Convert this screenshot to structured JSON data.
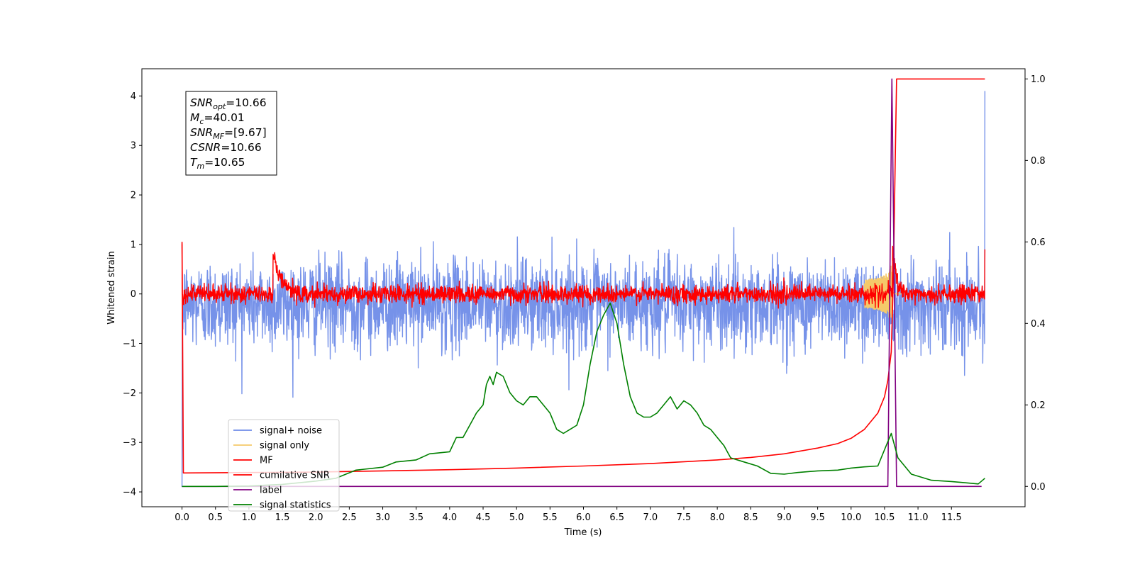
{
  "chart_data": {
    "type": "line",
    "xlabel": "Time (s)",
    "ylabel_left": "Whitened strain",
    "xlim": [
      -0.6,
      12.6
    ],
    "ylim_left": [
      -4.3,
      4.55
    ],
    "ylim_right": [
      -0.05,
      1.025
    ],
    "x_ticks": [
      0.0,
      0.5,
      1.0,
      1.5,
      2.0,
      2.5,
      3.0,
      3.5,
      4.0,
      4.5,
      5.0,
      5.5,
      6.0,
      6.5,
      7.0,
      7.5,
      8.0,
      8.5,
      9.0,
      9.5,
      10.0,
      10.5,
      11.0,
      11.5
    ],
    "x_tick_labels": [
      "0.0",
      "0.5",
      "1.0",
      "1.5",
      "2.0",
      "2.5",
      "3.0",
      "3.5",
      "4.0",
      "4.5",
      "5.0",
      "5.5",
      "6.0",
      "6.5",
      "7.0",
      "7.5",
      "8.0",
      "8.5",
      "9.0",
      "9.5",
      "10.0",
      "10.5",
      "11.0",
      "11.5"
    ],
    "y_ticks_left": [
      -4,
      -3,
      -2,
      -1,
      0,
      1,
      2,
      3,
      4
    ],
    "y_tick_labels_left": [
      "−4",
      "−3",
      "−2",
      "−1",
      "0",
      "1",
      "2",
      "3",
      "4"
    ],
    "y_ticks_right": [
      0.0,
      0.2,
      0.4,
      0.6,
      0.8,
      1.0
    ],
    "y_tick_labels_right": [
      "0.0",
      "0.2",
      "0.4",
      "0.6",
      "0.8",
      "1.0"
    ],
    "grid": false,
    "legend_position": "lower-left",
    "annotation_box": {
      "position": "top-left",
      "lines": [
        {
          "symbol": "SNR",
          "sub": "opt",
          "value": "=10.66"
        },
        {
          "symbol": "M",
          "sub": "c",
          "value": "=40.01"
        },
        {
          "symbol": "SNR",
          "sub": "MF",
          "value": "=[9.67]"
        },
        {
          "symbol": "CSNR",
          "sub": "",
          "value": "=10.66"
        },
        {
          "symbol": "T",
          "sub": "m",
          "value": "=10.65"
        }
      ]
    },
    "series": [
      {
        "name": "signal+ noise",
        "axis": "left",
        "color": "#6f8ce8",
        "style": "noise",
        "x_range": [
          0.0,
          12.0
        ],
        "mean": -0.2,
        "std": 0.45,
        "start_value": -3.9,
        "end_value": 4.1
      },
      {
        "name": "signal only",
        "axis": "left",
        "color": "#f5c96a",
        "style": "chirp",
        "x_range": [
          10.2,
          10.75
        ],
        "peak_time": 10.62,
        "peak_amplitude": 0.6
      },
      {
        "name": "MF",
        "axis": "left",
        "color": "#ff0000",
        "style": "noise",
        "x_range": [
          0.0,
          12.0
        ],
        "mean": 0.0,
        "std": 0.09,
        "start_value": 1.0,
        "end_value": 0.9,
        "bursts": [
          {
            "x": 1.36,
            "value": 0.95,
            "decay": 0.12
          },
          {
            "x": 10.62,
            "value": 1.2,
            "decay": 0.05
          }
        ]
      },
      {
        "name": "cumilative SNR",
        "axis": "right",
        "color": "#ff0000",
        "style": "line",
        "points": [
          [
            0.0,
            0.6
          ],
          [
            0.02,
            0.033
          ],
          [
            1.0,
            0.034
          ],
          [
            2.0,
            0.035
          ],
          [
            3.0,
            0.038
          ],
          [
            4.0,
            0.041
          ],
          [
            5.0,
            0.045
          ],
          [
            6.0,
            0.05
          ],
          [
            7.0,
            0.056
          ],
          [
            8.0,
            0.065
          ],
          [
            8.5,
            0.071
          ],
          [
            9.0,
            0.08
          ],
          [
            9.5,
            0.094
          ],
          [
            9.8,
            0.105
          ],
          [
            10.0,
            0.118
          ],
          [
            10.2,
            0.14
          ],
          [
            10.4,
            0.18
          ],
          [
            10.5,
            0.22
          ],
          [
            10.55,
            0.26
          ],
          [
            10.6,
            0.33
          ],
          [
            10.63,
            0.5
          ],
          [
            10.66,
            0.8
          ],
          [
            10.68,
            1.0
          ],
          [
            12.0,
            1.0
          ]
        ]
      },
      {
        "name": "label",
        "axis": "right",
        "color": "#800080",
        "style": "line",
        "points": [
          [
            0.0,
            0.0
          ],
          [
            10.55,
            0.0
          ],
          [
            10.61,
            1.0
          ],
          [
            10.68,
            0.0
          ],
          [
            11.95,
            0.0
          ]
        ]
      },
      {
        "name": "signal statistics",
        "axis": "right",
        "color": "#008000",
        "style": "line",
        "points": [
          [
            0.0,
            0.0
          ],
          [
            0.5,
            0.0
          ],
          [
            1.0,
            0.001
          ],
          [
            1.5,
            0.005
          ],
          [
            2.0,
            0.013
          ],
          [
            2.3,
            0.02
          ],
          [
            2.6,
            0.04
          ],
          [
            3.0,
            0.047
          ],
          [
            3.2,
            0.06
          ],
          [
            3.5,
            0.065
          ],
          [
            3.7,
            0.08
          ],
          [
            4.0,
            0.085
          ],
          [
            4.1,
            0.12
          ],
          [
            4.2,
            0.12
          ],
          [
            4.3,
            0.15
          ],
          [
            4.4,
            0.18
          ],
          [
            4.5,
            0.2
          ],
          [
            4.55,
            0.25
          ],
          [
            4.6,
            0.27
          ],
          [
            4.65,
            0.25
          ],
          [
            4.7,
            0.28
          ],
          [
            4.8,
            0.27
          ],
          [
            4.9,
            0.23
          ],
          [
            5.0,
            0.21
          ],
          [
            5.1,
            0.2
          ],
          [
            5.2,
            0.22
          ],
          [
            5.3,
            0.22
          ],
          [
            5.4,
            0.2
          ],
          [
            5.5,
            0.18
          ],
          [
            5.6,
            0.14
          ],
          [
            5.7,
            0.13
          ],
          [
            5.8,
            0.14
          ],
          [
            5.9,
            0.15
          ],
          [
            6.0,
            0.2
          ],
          [
            6.1,
            0.3
          ],
          [
            6.2,
            0.38
          ],
          [
            6.3,
            0.42
          ],
          [
            6.4,
            0.45
          ],
          [
            6.5,
            0.4
          ],
          [
            6.6,
            0.3
          ],
          [
            6.7,
            0.22
          ],
          [
            6.8,
            0.18
          ],
          [
            6.9,
            0.17
          ],
          [
            7.0,
            0.17
          ],
          [
            7.1,
            0.18
          ],
          [
            7.2,
            0.2
          ],
          [
            7.3,
            0.22
          ],
          [
            7.4,
            0.19
          ],
          [
            7.5,
            0.21
          ],
          [
            7.6,
            0.2
          ],
          [
            7.7,
            0.18
          ],
          [
            7.8,
            0.15
          ],
          [
            7.9,
            0.14
          ],
          [
            8.0,
            0.12
          ],
          [
            8.1,
            0.1
          ],
          [
            8.2,
            0.07
          ],
          [
            8.4,
            0.06
          ],
          [
            8.6,
            0.05
          ],
          [
            8.8,
            0.032
          ],
          [
            9.0,
            0.03
          ],
          [
            9.2,
            0.034
          ],
          [
            9.5,
            0.038
          ],
          [
            9.8,
            0.04
          ],
          [
            10.0,
            0.045
          ],
          [
            10.2,
            0.048
          ],
          [
            10.4,
            0.05
          ],
          [
            10.5,
            0.09
          ],
          [
            10.6,
            0.13
          ],
          [
            10.7,
            0.07
          ],
          [
            10.9,
            0.03
          ],
          [
            11.2,
            0.015
          ],
          [
            11.5,
            0.012
          ],
          [
            11.7,
            0.009
          ],
          [
            11.9,
            0.006
          ],
          [
            12.0,
            0.02
          ]
        ]
      }
    ]
  }
}
